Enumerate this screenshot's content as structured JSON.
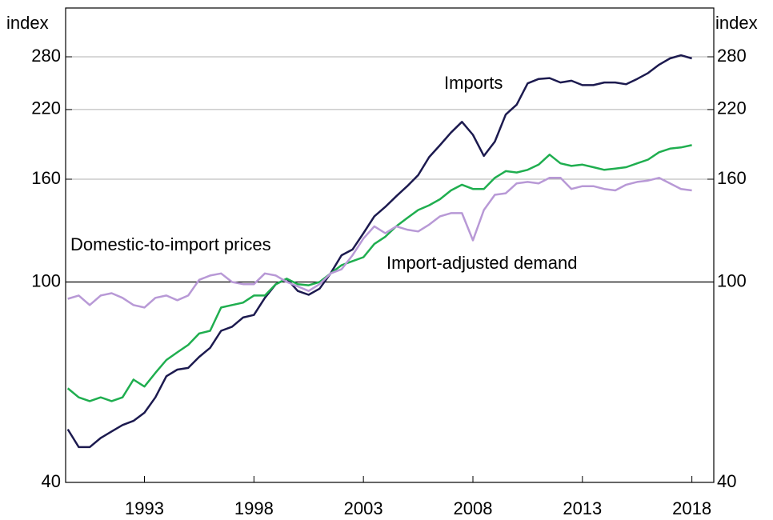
{
  "chart_data": {
    "type": "line",
    "ylabel": "index",
    "log_scale": true,
    "grid": true,
    "reference_line": 100,
    "xlim": [
      1989.9,
      2019.5
    ],
    "xticks": [
      {
        "value": 1993.5,
        "label": "1993"
      },
      {
        "value": 1998.5,
        "label": "1998"
      },
      {
        "value": 2003.5,
        "label": "2003"
      },
      {
        "value": 2008.5,
        "label": "2008"
      },
      {
        "value": 2013.5,
        "label": "2013"
      },
      {
        "value": 2018.5,
        "label": "2018"
      }
    ],
    "ylim": [
      40,
      350
    ],
    "yticks": [
      40,
      100,
      160,
      220,
      280
    ],
    "x": [
      1990.0,
      1990.5,
      1991.0,
      1991.5,
      1992.0,
      1992.5,
      1993.0,
      1993.5,
      1994.0,
      1994.5,
      1995.0,
      1995.5,
      1996.0,
      1996.5,
      1997.0,
      1997.5,
      1998.0,
      1998.5,
      1999.0,
      1999.5,
      2000.0,
      2000.5,
      2001.0,
      2001.5,
      2002.0,
      2002.5,
      2003.0,
      2003.5,
      2004.0,
      2004.5,
      2005.0,
      2005.5,
      2006.0,
      2006.5,
      2007.0,
      2007.5,
      2008.0,
      2008.5,
      2009.0,
      2009.5,
      2010.0,
      2010.5,
      2011.0,
      2011.5,
      2012.0,
      2012.5,
      2013.0,
      2013.5,
      2014.0,
      2014.5,
      2015.0,
      2015.5,
      2016.0,
      2016.5,
      2017.0,
      2017.5,
      2018.0,
      2018.5
    ],
    "series": [
      {
        "name": "Imports",
        "color": "#1c1a4f",
        "values": [
          51,
          47,
          47,
          49,
          50.5,
          52,
          53,
          55,
          59,
          65,
          67,
          67.5,
          71,
          74,
          80,
          81.5,
          85,
          86,
          93,
          99,
          101.5,
          96,
          94.3,
          97,
          104,
          113,
          116,
          125,
          135,
          141,
          148,
          155,
          163,
          177,
          187,
          198,
          208,
          196,
          178,
          190,
          215,
          225,
          248,
          253,
          254,
          249,
          251,
          246,
          246,
          249,
          249,
          247,
          253,
          260,
          270,
          278,
          282,
          278
        ]
      },
      {
        "name": "Import-adjusted demand",
        "color": "#1fae4f",
        "values": [
          61.5,
          59,
          58,
          59,
          58,
          59,
          64,
          62,
          66,
          70,
          72.5,
          75,
          79,
          80,
          89,
          90,
          91,
          94,
          94,
          99,
          101.5,
          99,
          98.5,
          100,
          104,
          108,
          110,
          112,
          119,
          123,
          129,
          134,
          139,
          142,
          146,
          152,
          156,
          153,
          153,
          161,
          166,
          165,
          167,
          171,
          179,
          172,
          170,
          171,
          169,
          167,
          168,
          169,
          172,
          175,
          181,
          184,
          185,
          187
        ]
      },
      {
        "name": "Domestic-to-import prices",
        "color": "#b899d6",
        "values": [
          92.6,
          94,
          90,
          94,
          95,
          93,
          90,
          89,
          93,
          94,
          92,
          94,
          101,
          103,
          104,
          100,
          99,
          99,
          104,
          103,
          100,
          98,
          96,
          99,
          104,
          106,
          113,
          122,
          129,
          125,
          129,
          127,
          126,
          130,
          135,
          137,
          137,
          121,
          139,
          149,
          150,
          157,
          158,
          157,
          161,
          161,
          153,
          155,
          155,
          153,
          152,
          156,
          158,
          159,
          161,
          157,
          153,
          152
        ]
      }
    ]
  }
}
